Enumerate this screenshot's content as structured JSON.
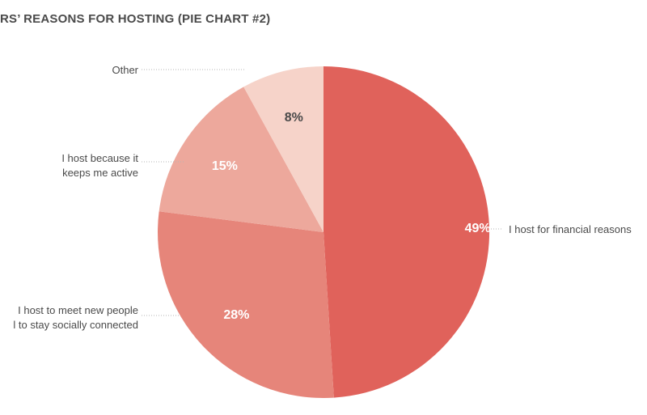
{
  "chart_data": {
    "type": "pie",
    "title": "RS’ REASONS FOR HOSTING (PIE CHART #2)",
    "slices": [
      {
        "label": "I host for financial reasons",
        "value": 49,
        "value_label": "49%",
        "color": "#e0625b",
        "text_color": "#ffffff"
      },
      {
        "label_lines": [
          "I host to meet new people",
          "l to stay socially connected"
        ],
        "value": 28,
        "value_label": "28%",
        "color": "#e6857a",
        "text_color": "#ffffff"
      },
      {
        "label_lines": [
          "I host because it",
          "keeps me active"
        ],
        "value": 15,
        "value_label": "15%",
        "color": "#eda89c",
        "text_color": "#ffffff"
      },
      {
        "label": "Other",
        "value": 8,
        "value_label": "8%",
        "color": "#f6d3c9",
        "text_color": "#4a4a4a"
      }
    ]
  }
}
